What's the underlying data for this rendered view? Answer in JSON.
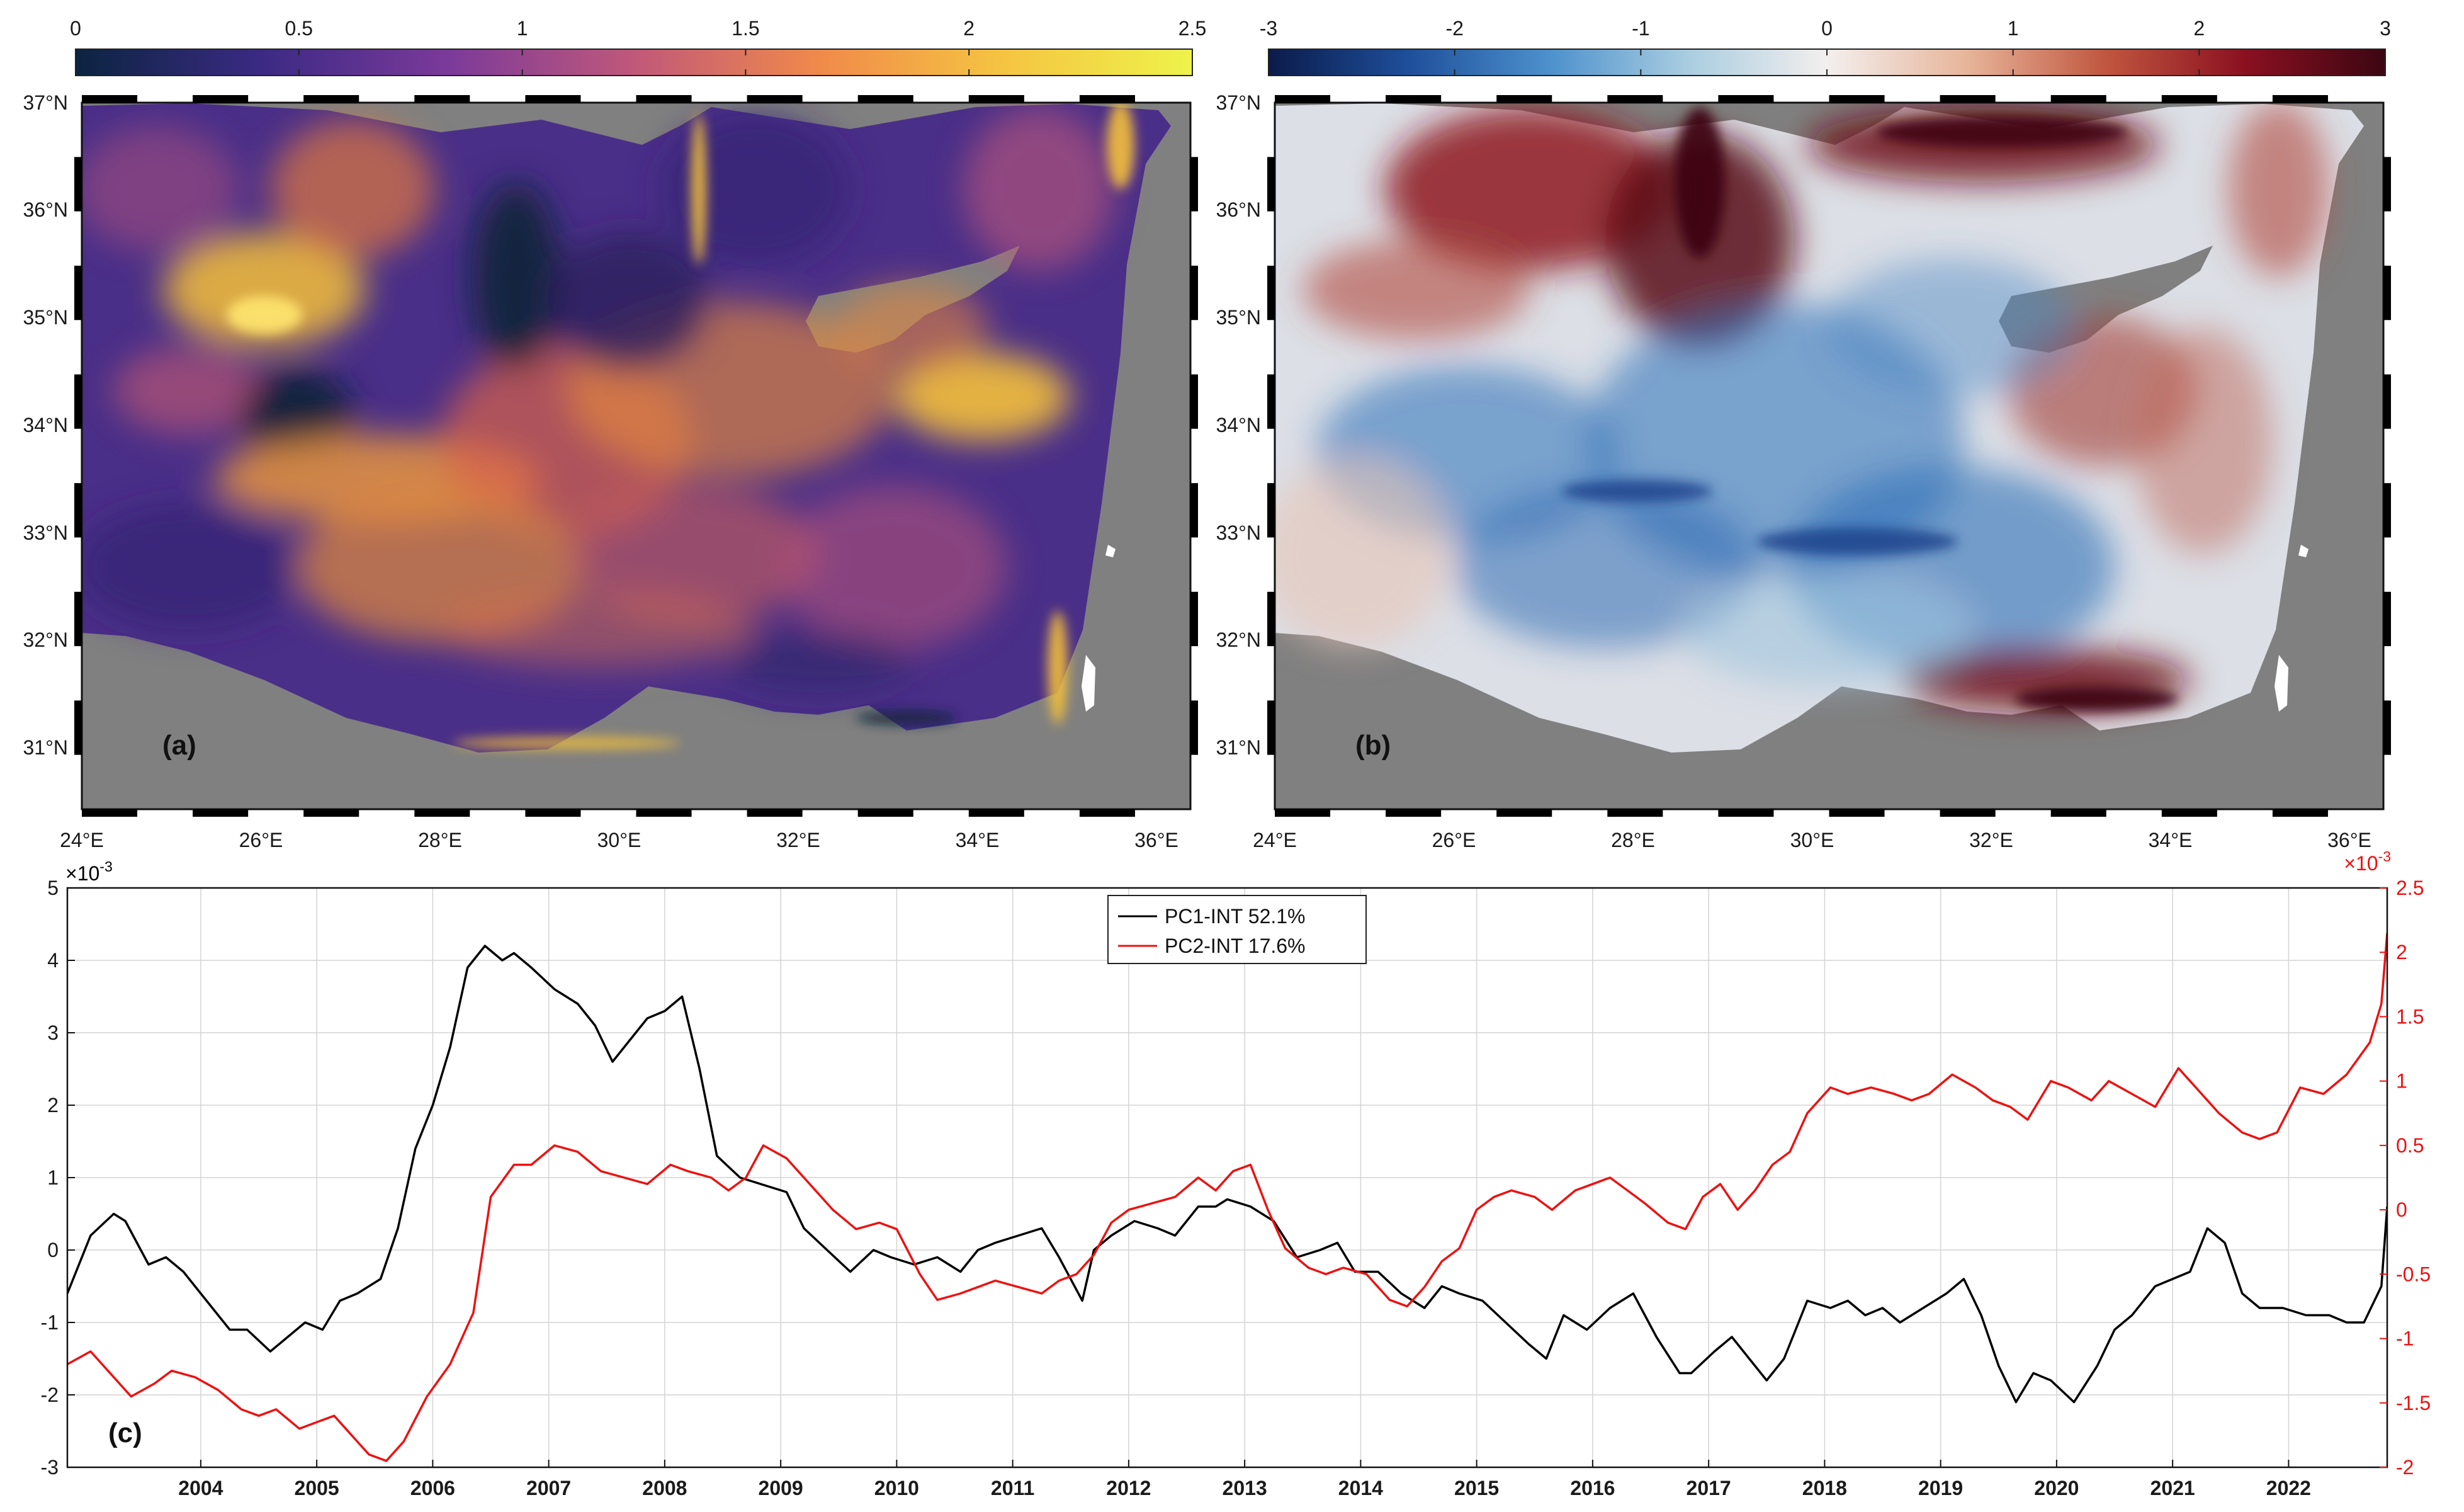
{
  "figure": {
    "colorbar_a": {
      "ticks": [
        "0",
        "0.5",
        "1",
        "1.5",
        "2",
        "2.5"
      ],
      "stops": [
        "#0b2440",
        "#3b2a84",
        "#7b3a9a",
        "#c0587a",
        "#f08a4a",
        "#f5c542",
        "#eef34a"
      ]
    },
    "colorbar_b": {
      "ticks": [
        "-3",
        "-2",
        "-1",
        "0",
        "1",
        "2",
        "3"
      ],
      "stops": [
        "#0b1b4a",
        "#1e4f9a",
        "#4c90cc",
        "#a9cde0",
        "#f3efee",
        "#e7b59a",
        "#c0563f",
        "#8a1020",
        "#3c0612"
      ]
    },
    "map_a": {
      "label": "(a)",
      "lat_labels": [
        "37°N",
        "36°N",
        "35°N",
        "34°N",
        "33°N",
        "32°N",
        "31°N"
      ],
      "lon_labels": [
        "24°E",
        "26°E",
        "28°E",
        "30°E",
        "32°E",
        "34°E",
        "36°E"
      ],
      "colors": {
        "sea_base": "#4a2f88",
        "land": "#808080",
        "hot": "#f4c03a",
        "dark": "#0d2238"
      }
    },
    "map_b": {
      "label": "(b)",
      "lat_labels": [
        "37°N",
        "36°N",
        "35°N",
        "34°N",
        "33°N",
        "32°N",
        "31°N"
      ],
      "lon_labels": [
        "24°E",
        "26°E",
        "28°E",
        "30°E",
        "32°E",
        "34°E",
        "36°E"
      ],
      "colors": {
        "sea_base": "#dcdfe6",
        "land": "#808080",
        "red": "#8e1a1f",
        "blue": "#2b6fb8"
      }
    }
  },
  "chart_data": {
    "type": "line",
    "panel_label": "(c)",
    "xlim": [
      2003,
      2023
    ],
    "x_tick_labels": [
      "2004",
      "2005",
      "2006",
      "2007",
      "2008",
      "2009",
      "2010",
      "2011",
      "2012",
      "2013",
      "2014",
      "2015",
      "2016",
      "2017",
      "2018",
      "2019",
      "2020",
      "2021",
      "2022"
    ],
    "y_left": {
      "ticks": [
        -3,
        -2,
        -1,
        0,
        1,
        2,
        3,
        4,
        5
      ],
      "tick_labels": [
        "-3",
        "-2",
        "-1",
        "0",
        "1",
        "2",
        "3",
        "4",
        "5"
      ],
      "ylim": [
        -3,
        5
      ],
      "multiplier": "×10",
      "exponent": "-3",
      "color": "#000000"
    },
    "y_right": {
      "ticks": [
        -2,
        -1.5,
        -1,
        -0.5,
        0,
        0.5,
        1,
        1.5,
        2,
        2.5
      ],
      "tick_labels": [
        "-2",
        "-1.5",
        "-1",
        "-0.5",
        "0",
        "0.5",
        "1",
        "1.5",
        "2",
        "2.5"
      ],
      "ylim": [
        -2,
        2.5
      ],
      "multiplier": "×10",
      "exponent": "-3",
      "color": "#ee1111"
    },
    "legend": {
      "position": "top-center"
    },
    "series": [
      {
        "name": "PC1-INT 52.1%",
        "color": "#000000",
        "axis": "left",
        "x": [
          2003.0,
          2003.2,
          2003.4,
          2003.5,
          2003.7,
          2003.85,
          2004.0,
          2004.2,
          2004.4,
          2004.55,
          2004.75,
          2004.9,
          2005.05,
          2005.2,
          2005.35,
          2005.5,
          2005.7,
          2005.85,
          2006.0,
          2006.15,
          2006.3,
          2006.45,
          2006.6,
          2006.75,
          2006.85,
          2007.0,
          2007.2,
          2007.4,
          2007.55,
          2007.7,
          2007.85,
          2008.0,
          2008.15,
          2008.3,
          2008.45,
          2008.6,
          2008.8,
          2009.0,
          2009.2,
          2009.35,
          2009.55,
          2009.75,
          2009.95,
          2010.1,
          2010.3,
          2010.5,
          2010.7,
          2010.85,
          2011.0,
          2011.2,
          2011.4,
          2011.55,
          2011.75,
          2011.85,
          2012.0,
          2012.2,
          2012.4,
          2012.55,
          2012.75,
          2012.9,
          2013.0,
          2013.2,
          2013.4,
          2013.6,
          2013.8,
          2013.95,
          2014.1,
          2014.3,
          2014.5,
          2014.7,
          2014.85,
          2015.0,
          2015.2,
          2015.4,
          2015.6,
          2015.75,
          2015.9,
          2016.1,
          2016.3,
          2016.5,
          2016.7,
          2016.9,
          2017.0,
          2017.2,
          2017.35,
          2017.5,
          2017.65,
          2017.8,
          2018.0,
          2018.2,
          2018.35,
          2018.5,
          2018.65,
          2018.8,
          2019.0,
          2019.2,
          2019.35,
          2019.5,
          2019.65,
          2019.8,
          2019.95,
          2020.1,
          2020.3,
          2020.5,
          2020.65,
          2020.8,
          2021.0,
          2021.15,
          2021.3,
          2021.45,
          2021.6,
          2021.75,
          2021.9,
          2022.1,
          2022.3,
          2022.5,
          2022.65,
          2022.8,
          2022.95,
          2023.0
        ],
        "values": [
          -0.6,
          0.2,
          0.5,
          0.4,
          -0.2,
          -0.1,
          -0.3,
          -0.7,
          -1.1,
          -1.1,
          -1.4,
          -1.2,
          -1.0,
          -1.1,
          -0.7,
          -0.6,
          -0.4,
          0.3,
          1.4,
          2.0,
          2.8,
          3.9,
          4.2,
          4.0,
          4.1,
          3.9,
          3.6,
          3.4,
          3.1,
          2.6,
          2.9,
          3.2,
          3.3,
          3.5,
          2.5,
          1.3,
          1.0,
          0.9,
          0.8,
          0.3,
          0.0,
          -0.3,
          0.0,
          -0.1,
          -0.2,
          -0.1,
          -0.3,
          0.0,
          0.1,
          0.2,
          0.3,
          -0.1,
          -0.7,
          0.0,
          0.2,
          0.4,
          0.3,
          0.2,
          0.6,
          0.6,
          0.7,
          0.6,
          0.4,
          -0.1,
          0.0,
          0.1,
          -0.3,
          -0.3,
          -0.6,
          -0.8,
          -0.5,
          -0.6,
          -0.7,
          -1.0,
          -1.3,
          -1.5,
          -0.9,
          -1.1,
          -0.8,
          -0.6,
          -1.2,
          -1.7,
          -1.7,
          -1.4,
          -1.2,
          -1.5,
          -1.8,
          -1.5,
          -0.7,
          -0.8,
          -0.7,
          -0.9,
          -0.8,
          -1.0,
          -0.8,
          -0.6,
          -0.4,
          -0.9,
          -1.6,
          -2.1,
          -1.7,
          -1.8,
          -2.1,
          -1.6,
          -1.1,
          -0.9,
          -0.5,
          -0.4,
          -0.3,
          0.3,
          0.1,
          -0.6,
          -0.8,
          -0.8,
          -0.9,
          -0.9,
          -1.0,
          -1.0,
          -0.5,
          0.6
        ]
      },
      {
        "name": "PC2-INT 17.6%",
        "color": "#ee1111",
        "axis": "right",
        "x": [
          2003.0,
          2003.2,
          2003.35,
          2003.55,
          2003.75,
          2003.9,
          2004.1,
          2004.3,
          2004.5,
          2004.65,
          2004.8,
          2005.0,
          2005.15,
          2005.3,
          2005.45,
          2005.6,
          2005.75,
          2005.9,
          2006.1,
          2006.3,
          2006.5,
          2006.65,
          2006.85,
          2007.0,
          2007.2,
          2007.4,
          2007.6,
          2007.8,
          2008.0,
          2008.2,
          2008.35,
          2008.55,
          2008.7,
          2008.85,
          2009.0,
          2009.2,
          2009.4,
          2009.6,
          2009.8,
          2010.0,
          2010.15,
          2010.35,
          2010.5,
          2010.7,
          2010.85,
          2011.0,
          2011.2,
          2011.4,
          2011.55,
          2011.7,
          2011.85,
          2012.0,
          2012.15,
          2012.35,
          2012.55,
          2012.75,
          2012.9,
          2013.05,
          2013.2,
          2013.35,
          2013.5,
          2013.7,
          2013.85,
          2014.0,
          2014.2,
          2014.4,
          2014.55,
          2014.7,
          2014.85,
          2015.0,
          2015.15,
          2015.3,
          2015.45,
          2015.65,
          2015.8,
          2016.0,
          2016.15,
          2016.3,
          2016.45,
          2016.6,
          2016.8,
          2016.95,
          2017.1,
          2017.25,
          2017.4,
          2017.55,
          2017.7,
          2017.85,
          2018.0,
          2018.2,
          2018.35,
          2018.55,
          2018.75,
          2018.9,
          2019.05,
          2019.25,
          2019.45,
          2019.6,
          2019.75,
          2019.9,
          2020.1,
          2020.25,
          2020.45,
          2020.6,
          2020.8,
          2021.0,
          2021.2,
          2021.4,
          2021.55,
          2021.75,
          2021.9,
          2022.05,
          2022.25,
          2022.45,
          2022.65,
          2022.85,
          2022.95,
          2023.0
        ],
        "values": [
          -1.2,
          -1.1,
          -1.25,
          -1.45,
          -1.35,
          -1.25,
          -1.3,
          -1.4,
          -1.55,
          -1.6,
          -1.55,
          -1.7,
          -1.65,
          -1.6,
          -1.75,
          -1.9,
          -1.95,
          -1.8,
          -1.45,
          -1.2,
          -0.8,
          0.1,
          0.35,
          0.35,
          0.5,
          0.45,
          0.3,
          0.25,
          0.2,
          0.35,
          0.3,
          0.25,
          0.15,
          0.25,
          0.5,
          0.4,
          0.2,
          0.0,
          -0.15,
          -0.1,
          -0.15,
          -0.5,
          -0.7,
          -0.65,
          -0.6,
          -0.55,
          -0.6,
          -0.65,
          -0.55,
          -0.5,
          -0.35,
          -0.1,
          0.0,
          0.05,
          0.1,
          0.25,
          0.15,
          0.3,
          0.35,
          0.0,
          -0.3,
          -0.45,
          -0.5,
          -0.45,
          -0.5,
          -0.7,
          -0.75,
          -0.6,
          -0.4,
          -0.3,
          0.0,
          0.1,
          0.15,
          0.1,
          0.0,
          0.15,
          0.2,
          0.25,
          0.15,
          0.05,
          -0.1,
          -0.15,
          0.1,
          0.2,
          0.0,
          0.15,
          0.35,
          0.45,
          0.75,
          0.95,
          0.9,
          0.95,
          0.9,
          0.85,
          0.9,
          1.05,
          0.95,
          0.85,
          0.8,
          0.7,
          1.0,
          0.95,
          0.85,
          1.0,
          0.9,
          0.8,
          1.1,
          0.9,
          0.75,
          0.6,
          0.55,
          0.6,
          0.95,
          0.9,
          1.05,
          1.3,
          1.6,
          2.15
        ]
      }
    ]
  }
}
